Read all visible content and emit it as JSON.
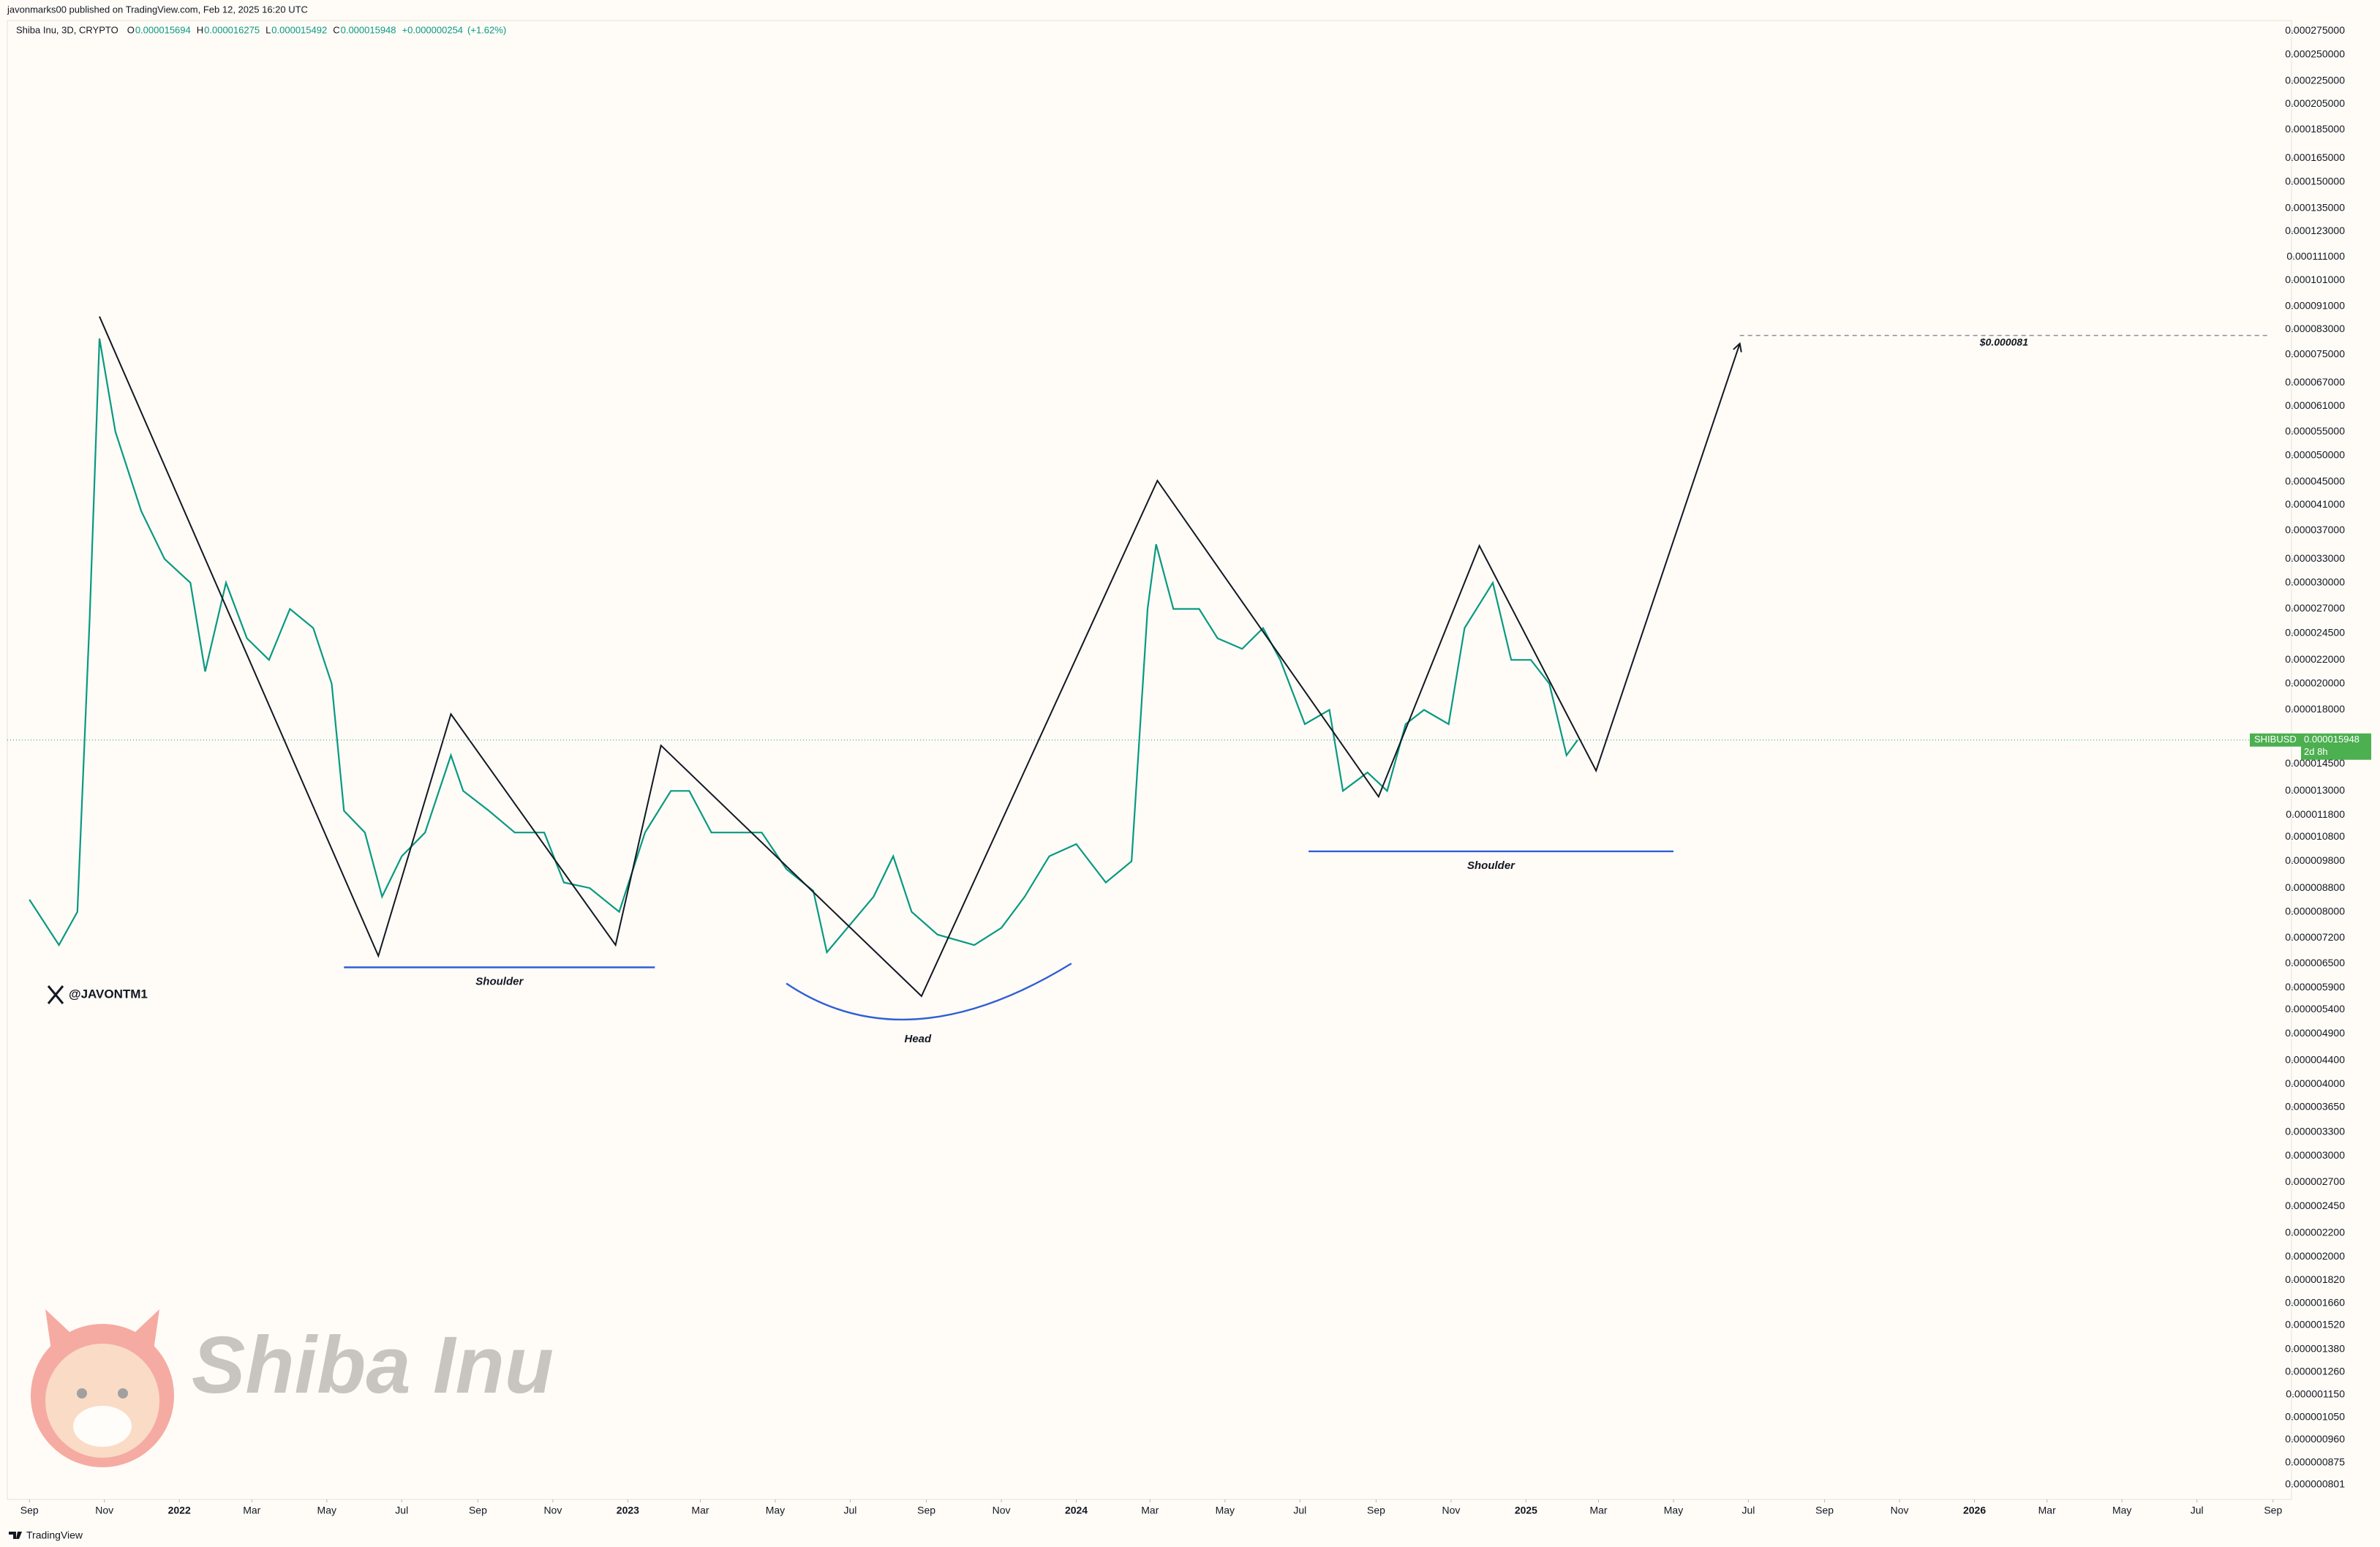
{
  "header": "javonmarks00 published on TradingView.com, Feb 12, 2025 16:20 UTC",
  "footer": "TradingView",
  "watermark_handle": "@JAVONTM1",
  "watermark_text": "Shiba Inu",
  "chart_data": {
    "type": "line",
    "title": "Shiba Inu, 3D, CRYPTO",
    "ohlc_keys": [
      "O",
      "H",
      "L",
      "C"
    ],
    "ohlc": [
      1.5694e-05,
      1.6275e-05,
      1.5492e-05,
      1.5948e-05
    ],
    "change": {
      "value": 2.54e-07,
      "label": "+0.000000254"
    },
    "change_pct": {
      "value": 1.62,
      "label": "(+1.62%)"
    },
    "symbol": "SHIBUSD",
    "last_price": 1.5948e-05,
    "countdown": "2d 8h",
    "log_scale": true,
    "grid": false,
    "xlim": [
      "2021-08-14",
      "2026-09-16"
    ],
    "ylim": [
      7.55e-07,
      0.000287
    ],
    "xticks": [
      {
        "value": "2021-09-01",
        "label": "Sep"
      },
      {
        "value": "2021-11-01",
        "label": "Nov"
      },
      {
        "value": "2022-01-01",
        "label": "2022"
      },
      {
        "value": "2022-03-01",
        "label": "Mar"
      },
      {
        "value": "2022-05-01",
        "label": "May"
      },
      {
        "value": "2022-07-01",
        "label": "Jul"
      },
      {
        "value": "2022-09-01",
        "label": "Sep"
      },
      {
        "value": "2022-11-01",
        "label": "Nov"
      },
      {
        "value": "2023-01-01",
        "label": "2023"
      },
      {
        "value": "2023-03-01",
        "label": "Mar"
      },
      {
        "value": "2023-05-01",
        "label": "May"
      },
      {
        "value": "2023-07-01",
        "label": "Jul"
      },
      {
        "value": "2023-09-01",
        "label": "Sep"
      },
      {
        "value": "2023-11-01",
        "label": "Nov"
      },
      {
        "value": "2024-01-01",
        "label": "2024"
      },
      {
        "value": "2024-03-01",
        "label": "Mar"
      },
      {
        "value": "2024-05-01",
        "label": "May"
      },
      {
        "value": "2024-07-01",
        "label": "Jul"
      },
      {
        "value": "2024-09-01",
        "label": "Sep"
      },
      {
        "value": "2024-11-01",
        "label": "Nov"
      },
      {
        "value": "2025-01-01",
        "label": "2025"
      },
      {
        "value": "2025-03-01",
        "label": "Mar"
      },
      {
        "value": "2025-05-01",
        "label": "May"
      },
      {
        "value": "2025-07-01",
        "label": "Jul"
      },
      {
        "value": "2025-09-01",
        "label": "Sep"
      },
      {
        "value": "2025-11-01",
        "label": "Nov"
      },
      {
        "value": "2026-01-01",
        "label": "2026"
      },
      {
        "value": "2026-03-01",
        "label": "Mar"
      },
      {
        "value": "2026-05-01",
        "label": "May"
      },
      {
        "value": "2026-07-01",
        "label": "Jul"
      },
      {
        "value": "2026-09-01",
        "label": "Sep"
      }
    ],
    "yticks": [
      {
        "value": 0.000275,
        "label": "0.000275000"
      },
      {
        "value": 0.00025,
        "label": "0.000250000"
      },
      {
        "value": 0.000225,
        "label": "0.000225000"
      },
      {
        "value": 0.000205,
        "label": "0.000205000"
      },
      {
        "value": 0.000185,
        "label": "0.000185000"
      },
      {
        "value": 0.000165,
        "label": "0.000165000"
      },
      {
        "value": 0.00015,
        "label": "0.000150000"
      },
      {
        "value": 0.000135,
        "label": "0.000135000"
      },
      {
        "value": 0.000123,
        "label": "0.000123000"
      },
      {
        "value": 0.000111,
        "label": "0.000111000"
      },
      {
        "value": 0.000101,
        "label": "0.000101000"
      },
      {
        "value": 9.1e-05,
        "label": "0.000091000"
      },
      {
        "value": 8.3e-05,
        "label": "0.000083000"
      },
      {
        "value": 7.5e-05,
        "label": "0.000075000"
      },
      {
        "value": 6.7e-05,
        "label": "0.000067000"
      },
      {
        "value": 6.1e-05,
        "label": "0.000061000"
      },
      {
        "value": 5.5e-05,
        "label": "0.000055000"
      },
      {
        "value": 5e-05,
        "label": "0.000050000"
      },
      {
        "value": 4.5e-05,
        "label": "0.000045000"
      },
      {
        "value": 4.1e-05,
        "label": "0.000041000"
      },
      {
        "value": 3.7e-05,
        "label": "0.000037000"
      },
      {
        "value": 3.3e-05,
        "label": "0.000033000"
      },
      {
        "value": 3e-05,
        "label": "0.000030000"
      },
      {
        "value": 2.7e-05,
        "label": "0.000027000"
      },
      {
        "value": 2.45e-05,
        "label": "0.000024500"
      },
      {
        "value": 2.2e-05,
        "label": "0.000022000"
      },
      {
        "value": 2e-05,
        "label": "0.000020000"
      },
      {
        "value": 1.8e-05,
        "label": "0.000018000"
      },
      {
        "value": 1.45e-05,
        "label": "0.000014500"
      },
      {
        "value": 1.3e-05,
        "label": "0.000013000"
      },
      {
        "value": 1.18e-05,
        "label": "0.000011800"
      },
      {
        "value": 1.08e-05,
        "label": "0.000010800"
      },
      {
        "value": 9.8e-06,
        "label": "0.000009800"
      },
      {
        "value": 8.8e-06,
        "label": "0.000008800"
      },
      {
        "value": 8e-06,
        "label": "0.000008000"
      },
      {
        "value": 7.2e-06,
        "label": "0.000007200"
      },
      {
        "value": 6.5e-06,
        "label": "0.000006500"
      },
      {
        "value": 5.9e-06,
        "label": "0.000005900"
      },
      {
        "value": 5.4e-06,
        "label": "0.000005400"
      },
      {
        "value": 4.9e-06,
        "label": "0.000004900"
      },
      {
        "value": 4.4e-06,
        "label": "0.000004400"
      },
      {
        "value": 4e-06,
        "label": "0.000004000"
      },
      {
        "value": 3.65e-06,
        "label": "0.000003650"
      },
      {
        "value": 3.3e-06,
        "label": "0.000003300"
      },
      {
        "value": 3e-06,
        "label": "0.000003000"
      },
      {
        "value": 2.7e-06,
        "label": "0.000002700"
      },
      {
        "value": 2.45e-06,
        "label": "0.000002450"
      },
      {
        "value": 2.2e-06,
        "label": "0.000002200"
      },
      {
        "value": 2e-06,
        "label": "0.000002000"
      },
      {
        "value": 1.82e-06,
        "label": "0.000001820"
      },
      {
        "value": 1.66e-06,
        "label": "0.000001660"
      },
      {
        "value": 1.52e-06,
        "label": "0.000001520"
      },
      {
        "value": 1.38e-06,
        "label": "0.000001380"
      },
      {
        "value": 1.26e-06,
        "label": "0.000001260"
      },
      {
        "value": 1.15e-06,
        "label": "0.000001150"
      },
      {
        "value": 1.05e-06,
        "label": "0.000001050"
      },
      {
        "value": 9.6e-07,
        "label": "0.000000960"
      },
      {
        "value": 8.75e-07,
        "label": "0.000000875"
      },
      {
        "value": 8.01e-07,
        "label": "0.000000801"
      }
    ],
    "series": [
      {
        "name": "SHIBUSD",
        "color": "#089981",
        "x": [
          "2021-09-01",
          "2021-09-25",
          "2021-10-10",
          "2021-10-20",
          "2021-10-28",
          "2021-11-10",
          "2021-12-01",
          "2021-12-20",
          "2022-01-10",
          "2022-01-22",
          "2022-02-08",
          "2022-02-25",
          "2022-03-15",
          "2022-04-01",
          "2022-04-20",
          "2022-05-05",
          "2022-05-15",
          "2022-06-01",
          "2022-06-15",
          "2022-07-01",
          "2022-07-20",
          "2022-08-10",
          "2022-08-20",
          "2022-09-10",
          "2022-10-01",
          "2022-10-25",
          "2022-11-10",
          "2022-12-01",
          "2022-12-25",
          "2023-01-15",
          "2023-02-05",
          "2023-02-20",
          "2023-03-10",
          "2023-04-01",
          "2023-04-20",
          "2023-05-10",
          "2023-06-01",
          "2023-06-12",
          "2023-07-01",
          "2023-07-20",
          "2023-08-05",
          "2023-08-20",
          "2023-09-10",
          "2023-10-10",
          "2023-11-01",
          "2023-11-20",
          "2023-12-10",
          "2024-01-01",
          "2024-01-25",
          "2024-02-15",
          "2024-02-28",
          "2024-03-06",
          "2024-03-20",
          "2024-04-10",
          "2024-04-25",
          "2024-05-15",
          "2024-06-01",
          "2024-06-15",
          "2024-07-05",
          "2024-07-25",
          "2024-08-05",
          "2024-08-25",
          "2024-09-10",
          "2024-09-25",
          "2024-10-10",
          "2024-10-30",
          "2024-11-12",
          "2024-12-05",
          "2024-12-20",
          "2025-01-05",
          "2025-01-20",
          "2025-02-03",
          "2025-02-12"
        ],
        "values": [
          8.4e-06,
          7e-06,
          8e-06,
          2.6e-05,
          8e-05,
          5.5e-05,
          4e-05,
          3.3e-05,
          3e-05,
          2.1e-05,
          3e-05,
          2.4e-05,
          2.2e-05,
          2.7e-05,
          2.5e-05,
          2e-05,
          1.2e-05,
          1.1e-05,
          8.5e-06,
          1e-05,
          1.1e-05,
          1.5e-05,
          1.3e-05,
          1.2e-05,
          1.1e-05,
          1.1e-05,
          9e-06,
          8.8e-06,
          8e-06,
          1.1e-05,
          1.3e-05,
          1.3e-05,
          1.1e-05,
          1.1e-05,
          1.1e-05,
          9.5e-06,
          8.7e-06,
          6.8e-06,
          7.6e-06,
          8.5e-06,
          1e-05,
          8e-06,
          7.3e-06,
          7e-06,
          7.5e-06,
          8.5e-06,
          1e-05,
          1.05e-05,
          9e-06,
          9.8e-06,
          2.7e-05,
          3.5e-05,
          2.7e-05,
          2.7e-05,
          2.4e-05,
          2.3e-05,
          2.5e-05,
          2.2e-05,
          1.7e-05,
          1.8e-05,
          1.3e-05,
          1.4e-05,
          1.3e-05,
          1.7e-05,
          1.8e-05,
          1.7e-05,
          2.5e-05,
          3e-05,
          2.2e-05,
          2.2e-05,
          2e-05,
          1.5e-05,
          1.5948e-05
        ]
      }
    ],
    "annotations": [
      {
        "kind": "zigzag",
        "color": "#131722",
        "x": [
          "2021-10-28",
          "2022-06-12",
          "2022-08-10",
          "2022-12-22",
          "2023-01-28",
          "2023-08-28",
          "2024-03-07",
          "2024-09-03",
          "2024-11-24",
          "2025-02-27",
          "2025-06-24"
        ],
        "values": [
          8.74e-05,
          6.7e-06,
          1.77e-05,
          7e-06,
          1.56e-05,
          5.7e-06,
          4.52e-05,
          1.27e-05,
          3.48e-05,
          1.41e-05,
          7.84e-05
        ]
      },
      {
        "kind": "target",
        "color": "#8a8f9c",
        "label": "$0.000081",
        "x": [
          "2025-06-24",
          "2026-08-28"
        ],
        "values": [
          8.1e-05,
          8.1e-05
        ]
      },
      {
        "kind": "level",
        "color": "#2f5fd6",
        "label": "Shoulder",
        "x": [
          "2022-05-15",
          "2023-01-23"
        ],
        "values": [
          6.4e-06,
          6.4e-06
        ]
      },
      {
        "kind": "curve",
        "color": "#2f5fd6",
        "label": "Head",
        "x": [
          "2023-05-10",
          "2023-08-25",
          "2023-12-28"
        ],
        "values": [
          6e-06,
          5.2e-06,
          6.5e-06
        ]
      },
      {
        "kind": "level",
        "color": "#2f5fd6",
        "label": "Shoulder",
        "x": [
          "2024-07-08",
          "2025-05-01"
        ],
        "values": [
          1.02e-05,
          1.02e-05
        ]
      }
    ]
  }
}
